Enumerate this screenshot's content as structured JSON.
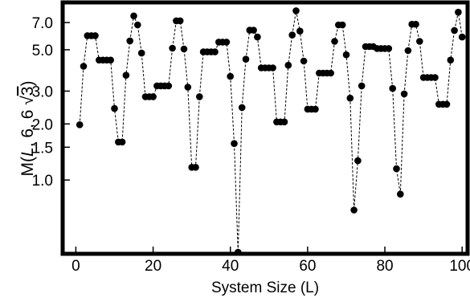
{
  "chart_data": {
    "type": "scatter",
    "title": "",
    "xlabel": "System Size (L)",
    "ylabel": {
      "prefix": "M(",
      "var": "L",
      "args": ", 6, 6 ",
      "radical": "3",
      "suffix": ")"
    },
    "y_scale": "log",
    "xlim": [
      -3,
      101
    ],
    "ylim": [
      0.41,
      8.8
    ],
    "x_ticks": [
      0,
      20,
      40,
      60,
      80,
      100
    ],
    "x_tick_labels": [
      "0",
      "20",
      "40",
      "60",
      "80",
      "100"
    ],
    "y_ticks": [
      1.0,
      1.5,
      2.0,
      3.0,
      5.0,
      7.0
    ],
    "y_tick_labels": [
      "1.0",
      "1.5",
      "2.0",
      "3.0",
      "5.0",
      "7.0"
    ],
    "grid": false,
    "legend": "none",
    "line_style": "dashed",
    "marker_color": "#000000",
    "series": [
      {
        "x": [
          1,
          2,
          3,
          4,
          5,
          6,
          7,
          8,
          9,
          10,
          11,
          12,
          13,
          14,
          15,
          16,
          17,
          18,
          19,
          20,
          21,
          22,
          23,
          24,
          25,
          26,
          27,
          28,
          29,
          30,
          31,
          32,
          33,
          34,
          35,
          36,
          37,
          38,
          39,
          40,
          41,
          42,
          43,
          44,
          45,
          46,
          47,
          48,
          49,
          50,
          51,
          52,
          53,
          54,
          55,
          56,
          57,
          58,
          59,
          60,
          61,
          62,
          63,
          64,
          65,
          66,
          67,
          68,
          69,
          70,
          71,
          72,
          73,
          74,
          75,
          76,
          77,
          78,
          79,
          80,
          81,
          82,
          83,
          84,
          85,
          86,
          87,
          88,
          89,
          90,
          91,
          92,
          93,
          94,
          95,
          96,
          97,
          98,
          99,
          100
        ],
        "y": [
          1.98,
          4.08,
          5.95,
          5.95,
          5.95,
          4.4,
          4.4,
          4.4,
          4.4,
          2.42,
          1.6,
          1.6,
          3.65,
          5.58,
          7.6,
          6.8,
          4.8,
          2.8,
          2.8,
          2.8,
          3.2,
          3.2,
          3.2,
          3.2,
          5.1,
          7.15,
          7.15,
          5.05,
          3.15,
          1.17,
          1.17,
          2.8,
          4.87,
          4.87,
          4.87,
          4.87,
          5.5,
          5.5,
          5.5,
          3.6,
          1.57,
          0.41,
          2.45,
          4.45,
          6.37,
          6.37,
          5.85,
          4.0,
          4.0,
          4.0,
          4.0,
          2.05,
          2.05,
          2.05,
          4.13,
          6.0,
          8.1,
          6.3,
          4.35,
          2.4,
          2.4,
          2.4,
          3.75,
          3.75,
          3.75,
          3.75,
          5.55,
          6.8,
          6.8,
          4.7,
          2.75,
          0.69,
          1.27,
          3.2,
          5.2,
          5.2,
          5.2,
          5.08,
          5.08,
          5.08,
          5.08,
          3.1,
          1.15,
          0.84,
          2.9,
          4.95,
          6.85,
          6.85,
          5.55,
          3.55,
          3.55,
          3.55,
          3.55,
          2.55,
          2.55,
          2.55,
          4.4,
          6.35,
          7.95,
          5.85
        ]
      }
    ]
  }
}
